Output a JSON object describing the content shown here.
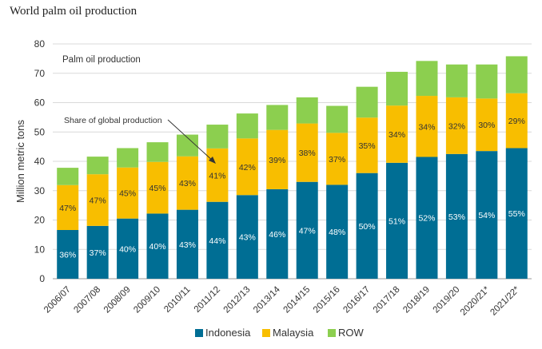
{
  "title": "World palm oil production",
  "chart_data": {
    "type": "bar",
    "stacked": true,
    "title": "World palm oil production",
    "subtitle": "Palm oil production",
    "annotation": "Share of global production",
    "ylabel": "Million metric tons",
    "xlabel": "",
    "ylim": [
      0,
      80
    ],
    "yticks": [
      0,
      10,
      20,
      30,
      40,
      50,
      60,
      70,
      80
    ],
    "grid": true,
    "legend_position": "bottom",
    "categories": [
      "2006/07",
      "2007/08",
      "2008/09",
      "2009/10",
      "2010/11",
      "2011/12",
      "2012/13",
      "2013/14",
      "2014/15",
      "2015/16",
      "2016/17",
      "2017/18",
      "2018/19",
      "2019/20",
      "2020/21*",
      "2021/22*"
    ],
    "series": [
      {
        "name": "Indonesia",
        "color": "#006e94",
        "values": [
          16.6,
          18.0,
          20.5,
          22.2,
          23.5,
          26.2,
          28.5,
          30.5,
          33.0,
          32.0,
          36.0,
          39.5,
          41.5,
          42.5,
          43.5,
          44.5
        ],
        "labels": [
          "36%",
          "37%",
          "40%",
          "40%",
          "43%",
          "44%",
          "43%",
          "46%",
          "47%",
          "48%",
          "50%",
          "51%",
          "52%",
          "53%",
          "54%",
          "55%"
        ]
      },
      {
        "name": "Malaysia",
        "color": "#f8be00",
        "values": [
          15.3,
          17.6,
          17.4,
          17.6,
          18.2,
          18.2,
          19.3,
          20.2,
          19.9,
          17.7,
          18.9,
          19.5,
          20.8,
          19.3,
          17.9,
          18.7
        ],
        "labels": [
          "47%",
          "47%",
          "45%",
          "45%",
          "43%",
          "41%",
          "42%",
          "39%",
          "38%",
          "37%",
          "35%",
          "34%",
          "34%",
          "32%",
          "30%",
          "29%"
        ]
      },
      {
        "name": "ROW",
        "color": "#8ccf4f",
        "values": [
          5.9,
          6.0,
          6.6,
          6.7,
          7.4,
          8.1,
          8.5,
          8.5,
          8.9,
          9.2,
          10.5,
          11.5,
          11.9,
          11.2,
          11.6,
          12.6
        ],
        "labels": []
      }
    ]
  }
}
